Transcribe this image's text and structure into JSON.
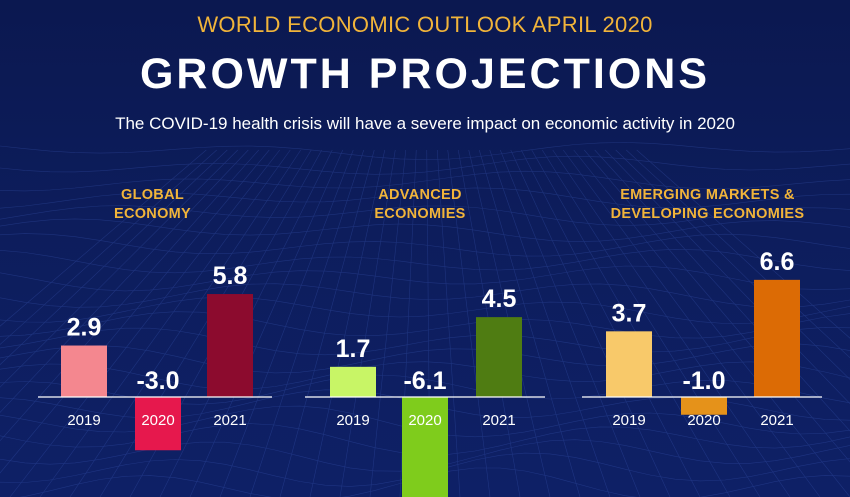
{
  "header": {
    "supertitle": "WORLD ECONOMIC OUTLOOK  APRIL 2020",
    "title": "GROWTH PROJECTIONS",
    "subtitle": "The COVID-19 health crisis will have a severe impact on economic activity in 2020"
  },
  "chart_data": [
    {
      "type": "bar",
      "title_lines": [
        "GLOBAL",
        "ECONOMY"
      ],
      "categories": [
        "2019",
        "2020",
        "2021"
      ],
      "values": [
        2.9,
        -3.0,
        5.8
      ],
      "value_labels": [
        "2.9",
        "-3.0",
        "5.8"
      ],
      "colors": [
        "#f4878f",
        "#e6184d",
        "#8c0b2e"
      ],
      "highlight_category_index": 1
    },
    {
      "type": "bar",
      "title_lines": [
        "ADVANCED",
        "ECONOMIES"
      ],
      "categories": [
        "2019",
        "2020",
        "2021"
      ],
      "values": [
        1.7,
        -6.1,
        4.5
      ],
      "value_labels": [
        "1.7",
        "-6.1",
        "4.5"
      ],
      "colors": [
        "#c8f566",
        "#7fcc1c",
        "#4f7c12"
      ],
      "highlight_category_index": 1
    },
    {
      "type": "bar",
      "title_lines": [
        "EMERGING MARKETS &",
        "DEVELOPING ECONOMIES"
      ],
      "categories": [
        "2019",
        "2020",
        "2021"
      ],
      "values": [
        3.7,
        -1.0,
        6.6
      ],
      "value_labels": [
        "3.7",
        "-1.0",
        "6.6"
      ],
      "colors": [
        "#f8c96a",
        "#e5921a",
        "#dc6b05"
      ],
      "highlight_category_index": -1
    }
  ]
}
